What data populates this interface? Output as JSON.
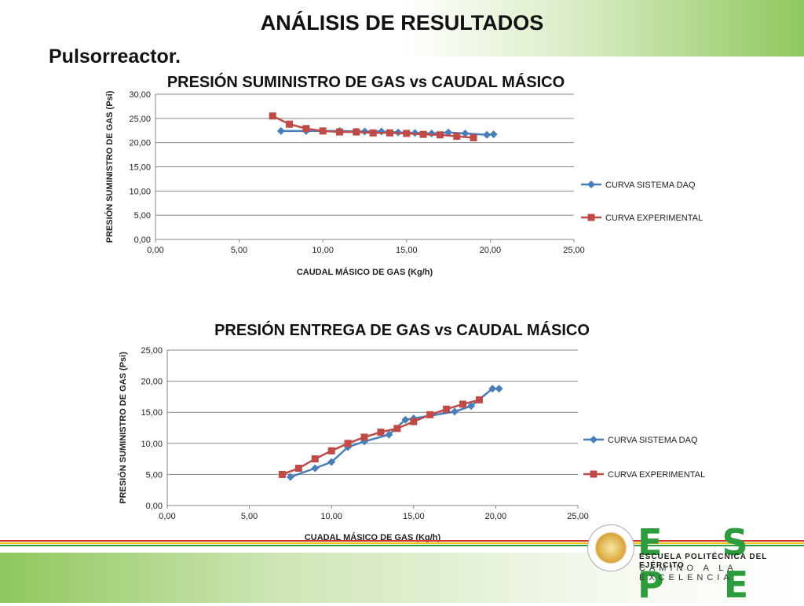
{
  "slide": {
    "title": "ANÁLISIS DE RESULTADOS",
    "subtitle": "Pulsorreactor."
  },
  "logo": {
    "wordmark": "E S P E",
    "line1": "ESCUELA POLITÉCNICA DEL EJÉRCITO",
    "line2": "CAMINO A LA EXCELENCIA",
    "color": "#2c9c3c"
  },
  "chart_data": [
    {
      "type": "line",
      "title": "PRESIÓN SUMINISTRO DE GAS vs CAUDAL MÁSICO",
      "xlabel": "CAUDAL MÁSICO DE GAS (Kg/h)",
      "ylabel": "PRESIÓN SUMINISTRO DE GAS (Psi)",
      "xlim": [
        0,
        25
      ],
      "ylim": [
        0,
        30
      ],
      "xticks": [
        "0,00",
        "5,00",
        "10,00",
        "15,00",
        "20,00",
        "25,00"
      ],
      "yticks": [
        "0,00",
        "5,00",
        "10,00",
        "15,00",
        "20,00",
        "25,00",
        "30,00"
      ],
      "grid": true,
      "legend": "right",
      "series": [
        {
          "name": "CURVA SISTEMA DAQ",
          "color": "#4a7ebb",
          "marker": "diamond",
          "x": [
            7.5,
            9.0,
            10.0,
            11.0,
            12.0,
            12.5,
            13.5,
            14.5,
            15.5,
            16.5,
            17.5,
            18.5,
            19.8,
            20.2
          ],
          "y": [
            22.4,
            22.4,
            22.4,
            22.4,
            22.3,
            22.3,
            22.3,
            22.1,
            22.0,
            21.9,
            22.1,
            21.9,
            21.6,
            21.7
          ]
        },
        {
          "name": "CURVA EXPERIMENTAL",
          "color": "#be4b48",
          "marker": "square",
          "x": [
            7.0,
            8.0,
            9.0,
            10.0,
            11.0,
            12.0,
            13.0,
            14.0,
            15.0,
            16.0,
            17.0,
            18.0,
            19.0
          ],
          "y": [
            25.5,
            23.8,
            22.9,
            22.4,
            22.2,
            22.2,
            22.0,
            22.0,
            21.9,
            21.7,
            21.6,
            21.3,
            21.0
          ]
        }
      ]
    },
    {
      "type": "line",
      "title": "PRESIÓN ENTREGA DE GAS vs CAUDAL MÁSICO",
      "xlabel": "CUADAL MÁSICO DE GAS (Kg/h)",
      "ylabel": "PRESIÓN SUMINISTRO DE GAS (Psi)",
      "xlim": [
        0,
        25
      ],
      "ylim": [
        0,
        25
      ],
      "xticks": [
        "0,00",
        "5,00",
        "10,00",
        "15,00",
        "20,00",
        "25,00"
      ],
      "yticks": [
        "0,00",
        "5,00",
        "10,00",
        "15,00",
        "20,00",
        "25,00"
      ],
      "grid": true,
      "legend": "right",
      "series": [
        {
          "name": "CURVA SISTEMA DAQ",
          "color": "#4a7ebb",
          "marker": "diamond",
          "x": [
            7.5,
            9.0,
            10.0,
            11.0,
            12.0,
            13.5,
            14.5,
            15.0,
            17.5,
            18.5,
            19.8,
            20.2
          ],
          "y": [
            4.6,
            6.0,
            7.0,
            9.4,
            10.3,
            11.4,
            13.8,
            14.0,
            15.1,
            16.0,
            18.8,
            18.8
          ]
        },
        {
          "name": "CURVA EXPERIMENTAL",
          "color": "#be4b48",
          "marker": "square",
          "x": [
            7.0,
            8.0,
            9.0,
            10.0,
            11.0,
            12.0,
            13.0,
            14.0,
            15.0,
            16.0,
            17.0,
            18.0,
            19.0
          ],
          "y": [
            5.0,
            6.0,
            7.5,
            8.8,
            10.0,
            11.0,
            11.8,
            12.4,
            13.5,
            14.6,
            15.5,
            16.3,
            17.0
          ]
        }
      ]
    }
  ]
}
